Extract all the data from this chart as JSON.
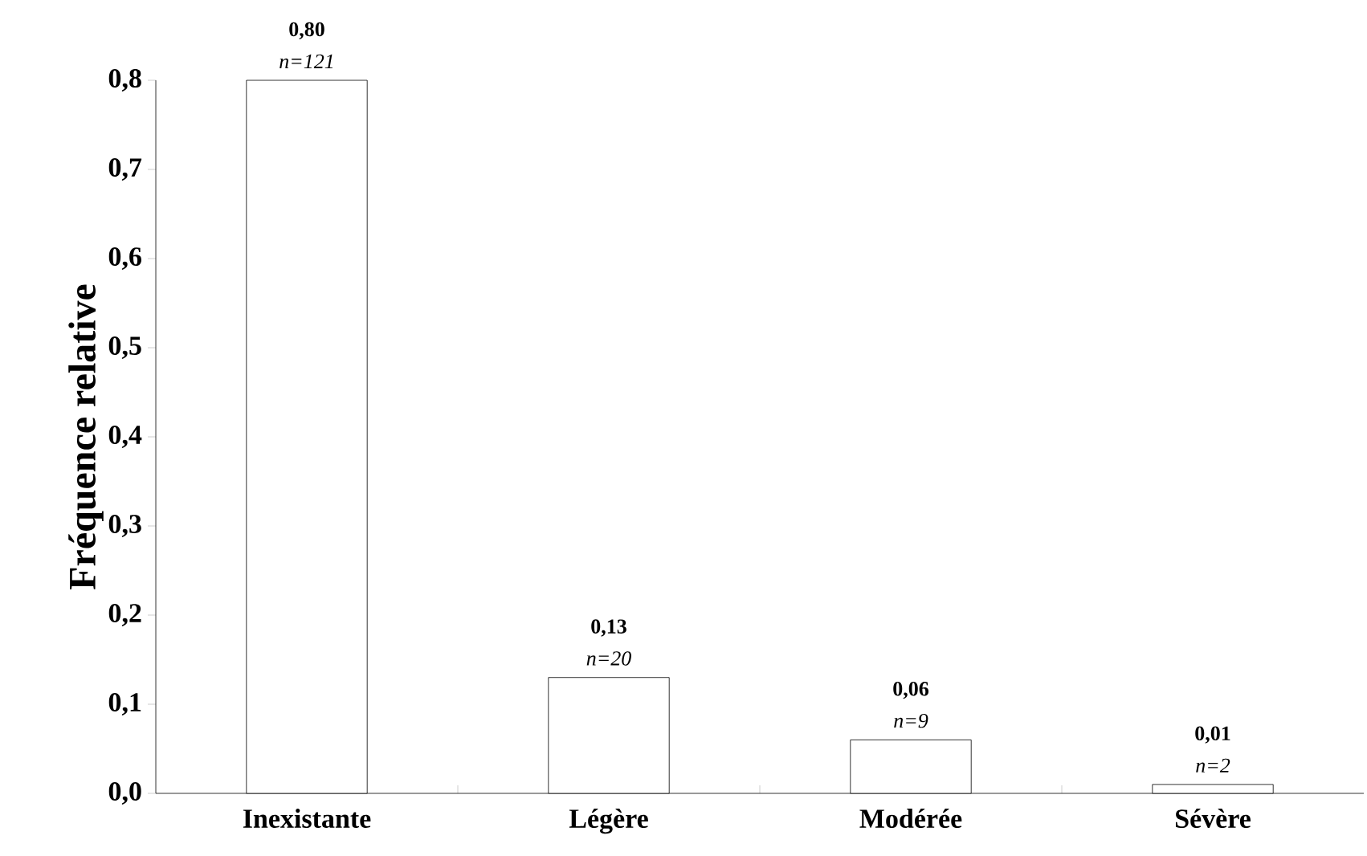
{
  "chart_data": {
    "type": "bar",
    "ylabel": "Fréquence relative",
    "categories": [
      "Inexistante",
      "Légère",
      "Modérée",
      "Sévère"
    ],
    "values": [
      0.8,
      0.13,
      0.06,
      0.01
    ],
    "value_labels": [
      "0,80",
      "0,13",
      "0,06",
      "0,01"
    ],
    "color": "#ffffff",
    "ylim": [
      0,
      0.8
    ],
    "yticks": [
      {
        "value": 0,
        "label": "0,0"
      },
      {
        "value": 0.1,
        "label": "0,1"
      },
      {
        "value": 0.2,
        "label": "0,2"
      },
      {
        "value": 0.3,
        "label": "0,3"
      },
      {
        "value": 0.4,
        "label": "0,4"
      },
      {
        "value": 0.5,
        "label": "0,5"
      },
      {
        "value": 0.6,
        "label": "0,6"
      },
      {
        "value": 0.7,
        "label": "0,7"
      },
      {
        "value": 0.8,
        "label": "0,8"
      }
    ],
    "annotations": [
      {
        "text": "n=121",
        "x": "Inexistante",
        "y": 0.8
      },
      {
        "text": "n=20",
        "x": "Légère",
        "y": 0.13
      },
      {
        "text": "n=9",
        "x": "Modérée",
        "y": 0.06
      },
      {
        "text": "n=2",
        "x": "Sévère",
        "y": 0.01
      }
    ],
    "grid": false
  }
}
